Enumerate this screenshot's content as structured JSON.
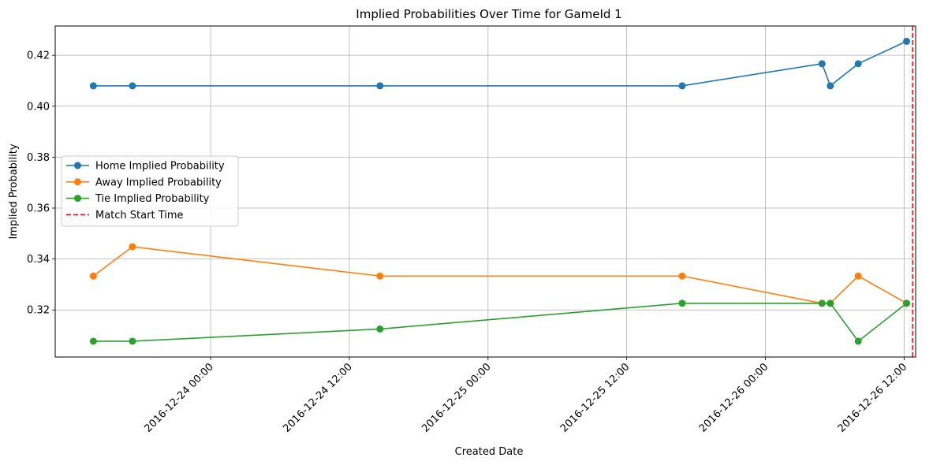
{
  "chart_data": {
    "type": "line",
    "title": "Implied Probabilities Over Time for GameId 1",
    "xlabel": "Created Date",
    "ylabel": "Implied Probability",
    "x_type": "datetime",
    "xlim": [
      "2016-12-23 10:33",
      "2016-12-26 13:00"
    ],
    "ylim": [
      0.3015,
      0.4315
    ],
    "x_ticks": [
      "2016-12-24 00:00",
      "2016-12-24 12:00",
      "2016-12-25 00:00",
      "2016-12-25 12:00",
      "2016-12-26 00:00",
      "2016-12-26 12:00"
    ],
    "y_ticks": [
      0.32,
      0.34,
      0.36,
      0.38,
      0.4,
      0.42
    ],
    "y_tick_labels": [
      "0.32",
      "0.34",
      "0.36",
      "0.38",
      "0.40",
      "0.42"
    ],
    "x": [
      "2016-12-23 13:51",
      "2016-12-23 17:14",
      "2016-12-24 14:39",
      "2016-12-25 16:48",
      "2016-12-26 04:54",
      "2016-12-26 05:37",
      "2016-12-26 08:02",
      "2016-12-26 12:13"
    ],
    "series": [
      {
        "name": "Home Implied Probability",
        "color": "#1f77b4",
        "values": [
          0.408,
          0.408,
          0.408,
          0.408,
          0.4167,
          0.408,
          0.4167,
          0.4255
        ]
      },
      {
        "name": "Away Implied Probability",
        "color": "#ff7f0e",
        "values": [
          0.3333,
          0.3448,
          0.3333,
          0.3333,
          0.3226,
          0.3226,
          0.3333,
          0.3226
        ]
      },
      {
        "name": "Tie Implied Probability",
        "color": "#2ca02c",
        "values": [
          0.3077,
          0.3077,
          0.3125,
          0.3226,
          0.3226,
          0.3226,
          0.3077,
          0.3226
        ]
      }
    ],
    "vline": {
      "name": "Match Start Time",
      "x": "2016-12-26 12:45",
      "color": "#ff0000",
      "style": "dashed"
    },
    "grid": true,
    "legend_position": "center-left"
  }
}
